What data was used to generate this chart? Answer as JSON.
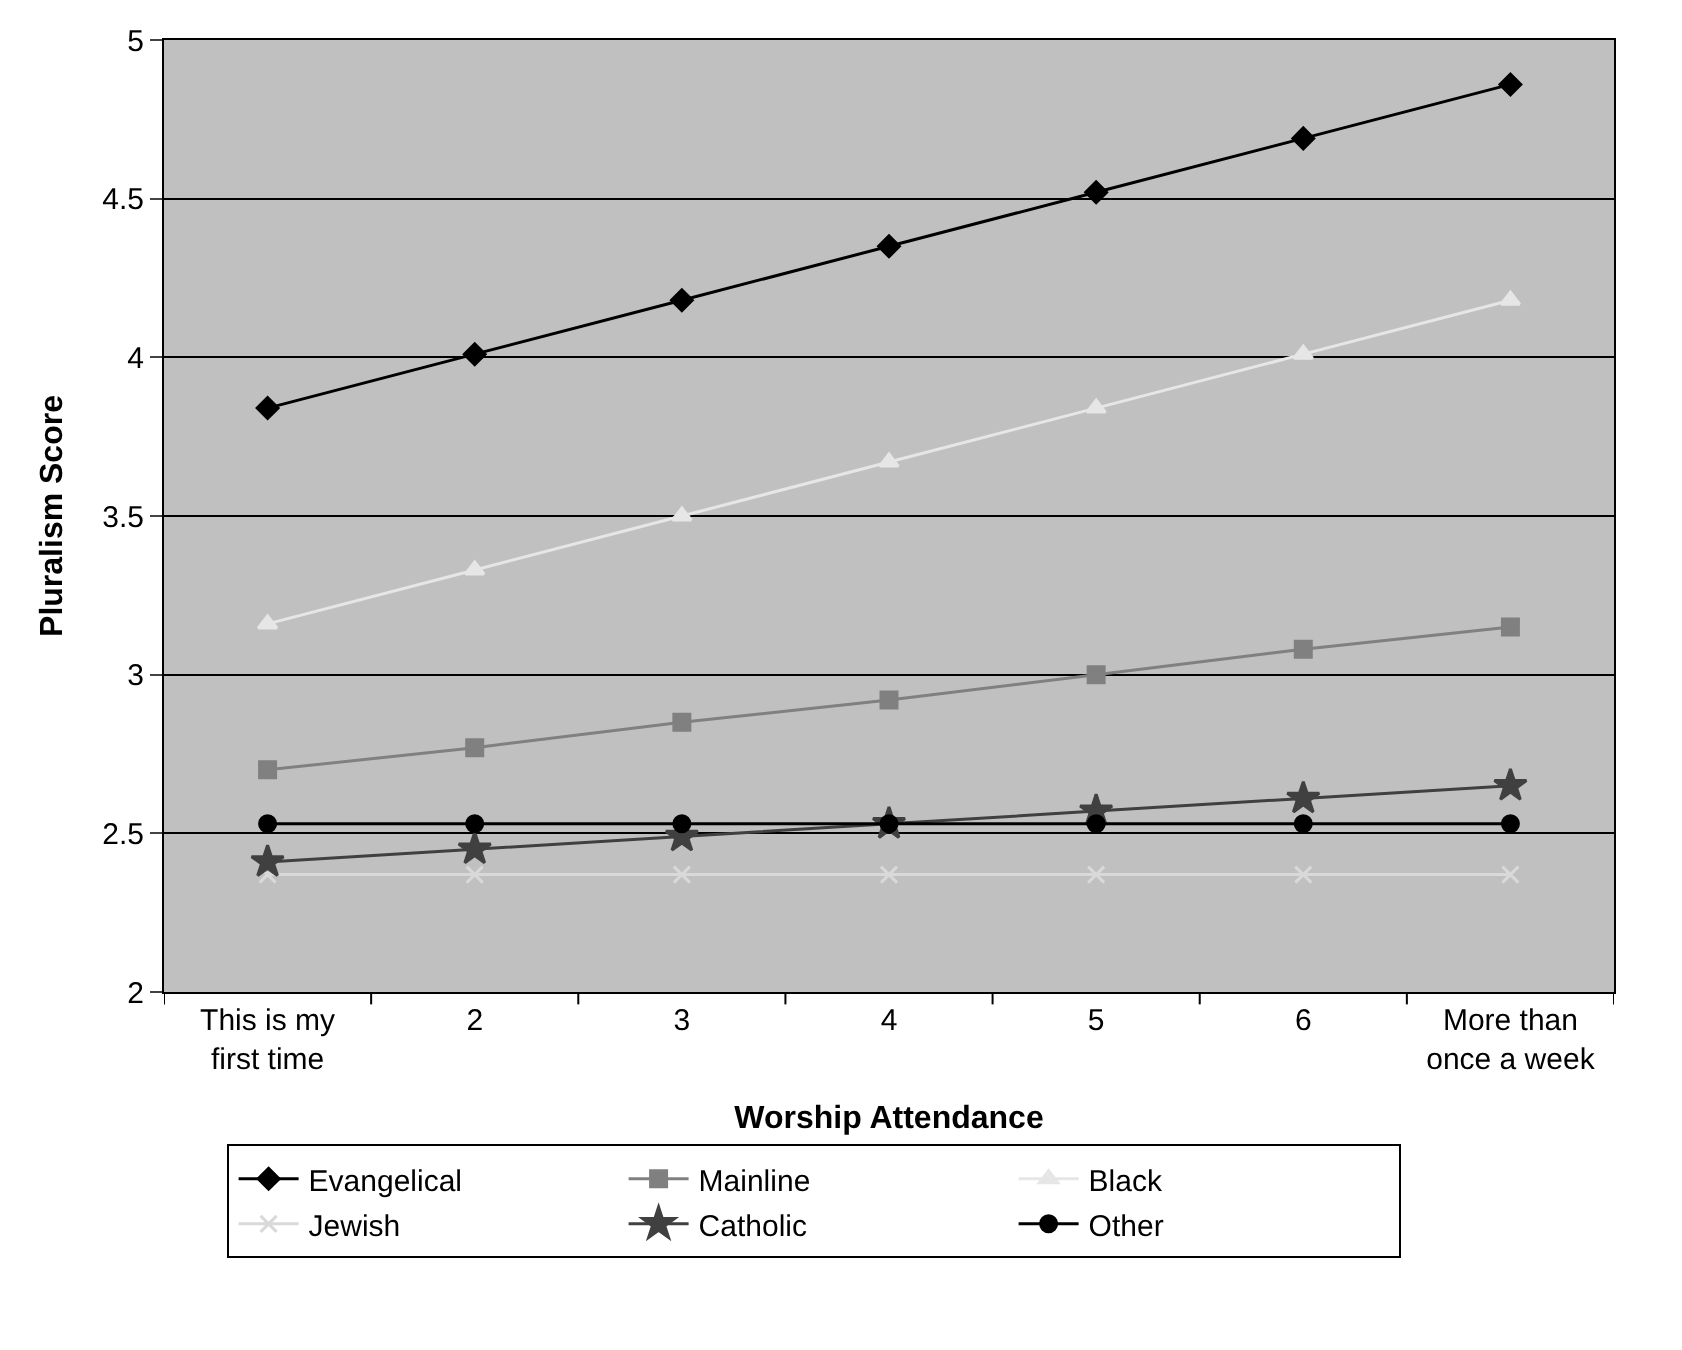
{
  "chart_data": {
    "type": "line",
    "xlabel": "Worship Attendance",
    "ylabel": "Pluralism Score",
    "categories": [
      "This is my first time",
      "2",
      "3",
      "4",
      "5",
      "6",
      "More than once a week"
    ],
    "ylim": [
      2,
      5
    ],
    "yticks": [
      2,
      2.5,
      3,
      3.5,
      4,
      4.5,
      5
    ],
    "grid": "y",
    "legend": "bottom",
    "line_style": "solid",
    "series": [
      {
        "name": "Evangelical",
        "color": "#000000",
        "marker": "diamond",
        "values": [
          3.84,
          4.01,
          4.18,
          4.35,
          4.52,
          4.69,
          4.86
        ]
      },
      {
        "name": "Mainline",
        "color": "#808080",
        "marker": "square",
        "values": [
          2.7,
          2.77,
          2.85,
          2.92,
          3.0,
          3.08,
          3.15
        ]
      },
      {
        "name": "Black",
        "color": "#e6e6e6",
        "marker": "triangle",
        "values": [
          3.16,
          3.33,
          3.5,
          3.67,
          3.84,
          4.01,
          4.18
        ]
      },
      {
        "name": "Jewish",
        "color": "#d9d9d9",
        "marker": "cross",
        "values": [
          2.37,
          2.37,
          2.37,
          2.37,
          2.37,
          2.37,
          2.37
        ]
      },
      {
        "name": "Catholic",
        "color": "#404040",
        "marker": "star",
        "values": [
          2.41,
          2.45,
          2.49,
          2.53,
          2.57,
          2.61,
          2.65
        ]
      },
      {
        "name": "Other",
        "color": "#000000",
        "marker": "circle",
        "values": [
          2.53,
          2.53,
          2.53,
          2.53,
          2.53,
          2.53,
          2.53
        ]
      }
    ]
  }
}
